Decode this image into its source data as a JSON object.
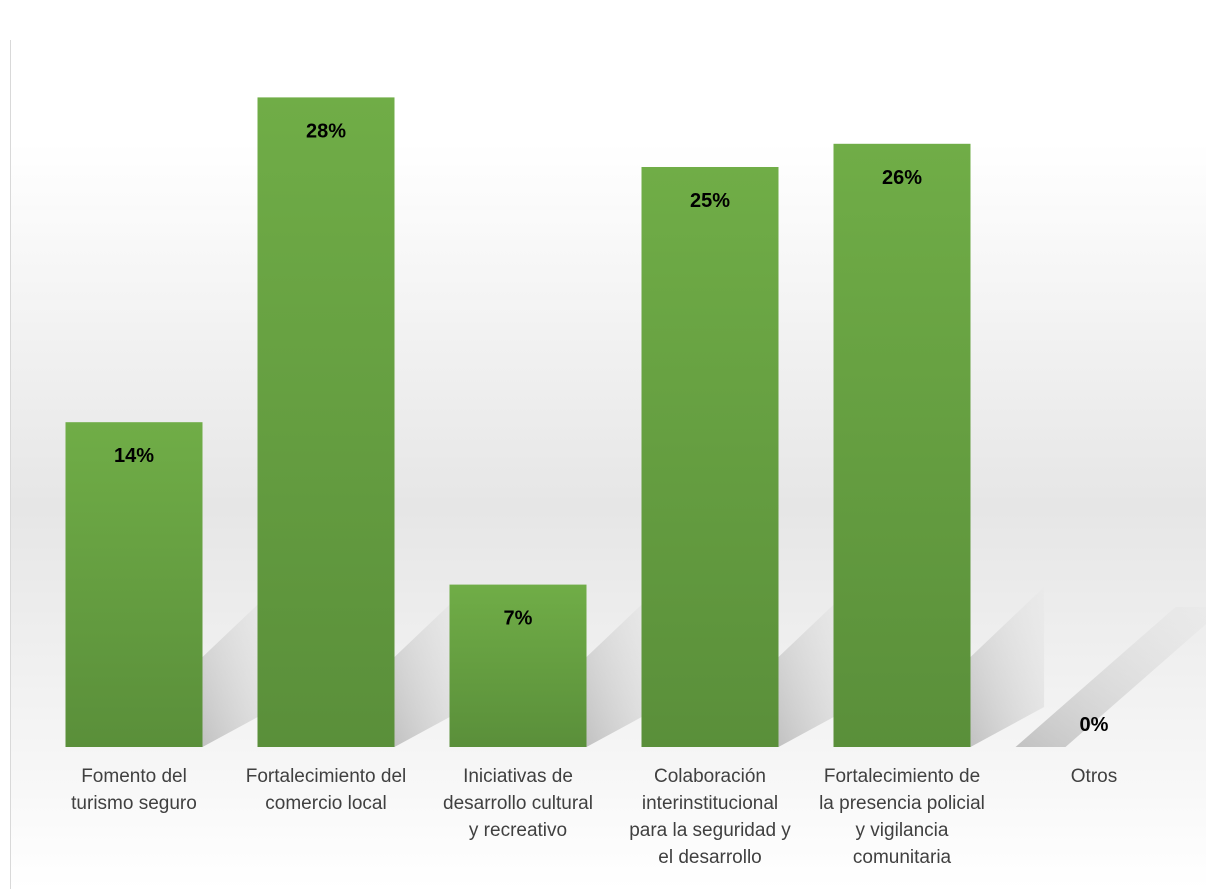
{
  "chart_data": {
    "type": "bar",
    "title": "",
    "xlabel": "",
    "ylabel": "",
    "categories": [
      "Fomento del\nturismo seguro",
      "Fortalecimiento del\ncomercio local",
      "Iniciativas de\ndesarrollo cultural\ny recreativo",
      "Colaboración\ninterinstitucional\npara la seguridad y\nel desarrollo",
      "Fortalecimiento de\nla presencia policial\ny vigilancia\ncomunitaria",
      "Otros"
    ],
    "values": [
      14,
      28,
      7,
      25,
      26,
      0
    ],
    "data_labels": [
      "14%",
      "28%",
      "7%",
      "25%",
      "26%",
      "0%"
    ],
    "value_unit": "%",
    "ylim": [
      0,
      30
    ],
    "grid": false,
    "legend": "none",
    "bar_color": "#6aa84f",
    "bar_color_dark": "#5b8f3c",
    "shadow_color": "#b8b8b8"
  }
}
